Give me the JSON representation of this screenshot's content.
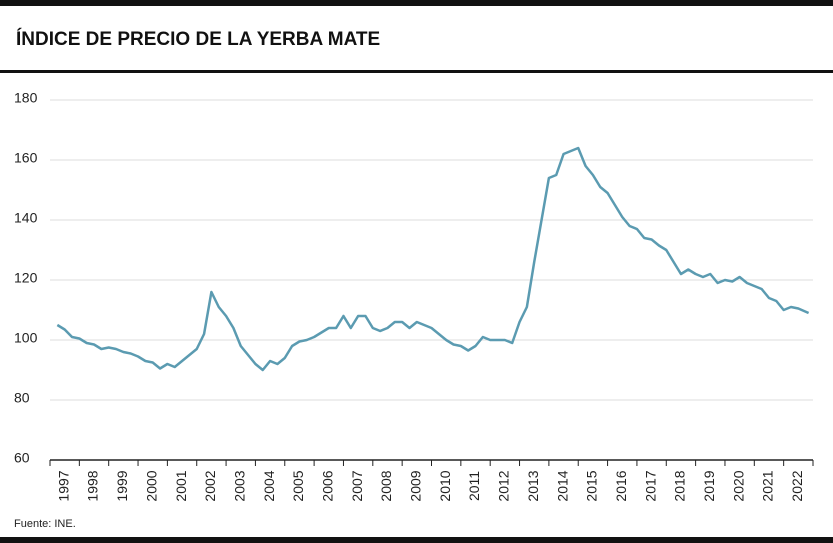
{
  "chart_data": {
    "type": "line",
    "title": "ÍNDICE DE PRECIO DE LA YERBA MATE",
    "source": "Fuente:  INE.",
    "x": [
      1997.25,
      1997.5,
      1997.75,
      1998,
      1998.25,
      1998.5,
      1998.75,
      1999,
      1999.25,
      1999.5,
      1999.75,
      2000,
      2000.25,
      2000.5,
      2000.75,
      2001,
      2001.25,
      2001.5,
      2001.75,
      2002,
      2002.25,
      2002.5,
      2002.75,
      2003,
      2003.25,
      2003.5,
      2003.75,
      2004,
      2004.25,
      2004.5,
      2004.75,
      2005,
      2005.25,
      2005.5,
      2005.75,
      2006,
      2006.25,
      2006.5,
      2006.75,
      2007,
      2007.25,
      2007.5,
      2007.75,
      2008,
      2008.25,
      2008.5,
      2008.75,
      2009,
      2009.25,
      2009.5,
      2009.75,
      2010,
      2010.25,
      2010.5,
      2010.75,
      2011,
      2011.25,
      2011.5,
      2011.75,
      2012,
      2012.25,
      2012.5,
      2012.75,
      2013,
      2013.25,
      2013.5,
      2013.75,
      2014,
      2014.25,
      2014.5,
      2014.75,
      2015,
      2015.25,
      2015.5,
      2015.75,
      2016,
      2016.25,
      2016.5,
      2016.75,
      2017,
      2017.25,
      2017.5,
      2017.75,
      2018,
      2018.25,
      2018.5,
      2018.75,
      2019,
      2019.25,
      2019.5,
      2019.75,
      2020,
      2020.25,
      2020.5,
      2020.75,
      2021,
      2021.25,
      2021.5,
      2021.75,
      2022,
      2022.25,
      2022.5,
      2022.85
    ],
    "series": [
      {
        "name": "Índice",
        "color": "#5b9bb1",
        "values": [
          105,
          103.5,
          101,
          100.5,
          99,
          98.5,
          97,
          97.5,
          97,
          96,
          95.5,
          94.5,
          93,
          92.5,
          90.5,
          92,
          91,
          93,
          95,
          97,
          102,
          116,
          111,
          108,
          104,
          98,
          95,
          92,
          90,
          93,
          92,
          94,
          98,
          99.5,
          100,
          101,
          102.5,
          104,
          104,
          108,
          104,
          108,
          108,
          104,
          103,
          104,
          106,
          106,
          104,
          106,
          105,
          104,
          102,
          100,
          98.5,
          98,
          96.5,
          98,
          101,
          100,
          100,
          100,
          99,
          106,
          111,
          126,
          140,
          154,
          155,
          162,
          163,
          164,
          158,
          155,
          151,
          149,
          145,
          141,
          138,
          137,
          134,
          133.5,
          131.5,
          130,
          126,
          122,
          123.5,
          122,
          121,
          122,
          119,
          120,
          119.5,
          121,
          119,
          118,
          117,
          114,
          113,
          110,
          111,
          110.5,
          109
        ]
      }
    ],
    "xlim": [
      1997,
      2023
    ],
    "xticks": [
      1997,
      1998,
      1999,
      2000,
      2001,
      2002,
      2003,
      2004,
      2005,
      2006,
      2007,
      2008,
      2009,
      2010,
      2011,
      2012,
      2013,
      2014,
      2015,
      2016,
      2017,
      2018,
      2019,
      2020,
      2021,
      2022
    ],
    "ylim": [
      60,
      180
    ],
    "yticks": [
      60,
      80,
      100,
      120,
      140,
      160,
      180
    ],
    "grid": true
  }
}
